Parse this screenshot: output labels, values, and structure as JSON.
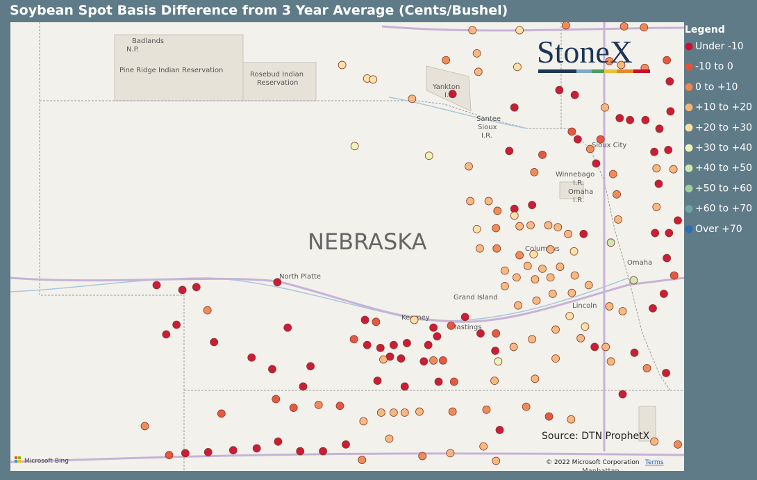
{
  "title": "Soybean Spot Basis Difference from 3 Year Average (Cents/Bushel)",
  "legend": {
    "title": "Legend",
    "items": [
      {
        "label": "Under -10",
        "color": "#c8102e"
      },
      {
        "label": "-10 to 0",
        "color": "#e4503a"
      },
      {
        "label": "0 to +10",
        "color": "#ee8650"
      },
      {
        "label": "+10 to +20",
        "color": "#f5b57a"
      },
      {
        "label": "+20 to +30",
        "color": "#fbe0a4"
      },
      {
        "label": "+30 to +40",
        "color": "#eef2b6"
      },
      {
        "label": "+40 to +50",
        "color": "#cfe6ae"
      },
      {
        "label": "+50 to +60",
        "color": "#9fcf9c"
      },
      {
        "label": "+60 to +70",
        "color": "#6fa6a4"
      },
      {
        "label": "Over +70",
        "color": "#2d6db5"
      }
    ]
  },
  "points": [
    [
      -102.41,
      41.09,
      0
    ],
    [
      -102.06,
      41.04,
      0
    ],
    [
      -101.87,
      41.07,
      0
    ],
    [
      -100.77,
      41.12,
      0
    ],
    [
      -101.72,
      40.83,
      2
    ],
    [
      -102.14,
      40.68,
      0
    ],
    [
      -102.28,
      40.58,
      0
    ],
    [
      -101.63,
      40.5,
      0
    ],
    [
      -101.12,
      40.34,
      0
    ],
    [
      -100.84,
      40.22,
      0
    ],
    [
      -100.63,
      40.65,
      0
    ],
    [
      -100.32,
      40.25,
      0
    ],
    [
      -100.42,
      40.04,
      0
    ],
    [
      -99.58,
      40.73,
      0
    ],
    [
      -99.43,
      40.71,
      1
    ],
    [
      -99.73,
      40.53,
      1
    ],
    [
      -99.55,
      40.47,
      0
    ],
    [
      -99.37,
      40.44,
      0
    ],
    [
      -99.19,
      40.47,
      0
    ],
    [
      -99.01,
      40.49,
      0
    ],
    [
      -99.24,
      40.35,
      0
    ],
    [
      -99.09,
      40.33,
      0
    ],
    [
      -99.33,
      40.32,
      3
    ],
    [
      -99.41,
      40.1,
      0
    ],
    [
      -98.78,
      40.3,
      0
    ],
    [
      -98.65,
      40.31,
      2
    ],
    [
      -98.52,
      40.31,
      1
    ],
    [
      -98.72,
      40.47,
      0
    ],
    [
      -98.6,
      40.56,
      0
    ],
    [
      -98.65,
      40.65,
      0
    ],
    [
      -98.41,
      40.67,
      1
    ],
    [
      -98.22,
      40.76,
      0
    ],
    [
      -98.91,
      40.73,
      4
    ],
    [
      -98.01,
      40.59,
      0
    ],
    [
      -97.8,
      40.59,
      1
    ],
    [
      -97.81,
      40.41,
      0
    ],
    [
      -97.56,
      40.45,
      3
    ],
    [
      -97.77,
      40.3,
      5
    ],
    [
      -97.31,
      40.53,
      3
    ],
    [
      -96.99,
      40.63,
      3
    ],
    [
      -96.8,
      40.77,
      4
    ],
    [
      -96.59,
      40.66,
      4
    ],
    [
      -96.65,
      40.54,
      3
    ],
    [
      -96.31,
      40.45,
      3
    ],
    [
      -96.24,
      40.3,
      3
    ],
    [
      -96.46,
      40.45,
      0
    ],
    [
      -96.99,
      40.33,
      3
    ],
    [
      -97.27,
      40.12,
      3
    ],
    [
      -97.82,
      40.1,
      3
    ],
    [
      -98.58,
      40.09,
      0
    ],
    [
      -98.37,
      40.09,
      1
    ],
    [
      -99.04,
      40.04,
      0
    ],
    [
      -100.79,
      39.91,
      1
    ],
    [
      -100.55,
      39.82,
      1
    ],
    [
      -100.21,
      39.85,
      2
    ],
    [
      -99.92,
      39.84,
      1
    ],
    [
      -101.53,
      39.76,
      1
    ],
    [
      -102.57,
      39.63,
      2
    ],
    [
      -99.6,
      39.68,
      3
    ],
    [
      -99.36,
      39.77,
      3
    ],
    [
      -99.19,
      39.77,
      3
    ],
    [
      -99.04,
      39.77,
      3
    ],
    [
      -98.84,
      39.78,
      3
    ],
    [
      -98.39,
      39.78,
      2
    ],
    [
      -97.93,
      39.8,
      2
    ],
    [
      -97.75,
      39.59,
      0
    ],
    [
      -97.39,
      39.83,
      2
    ],
    [
      -97.08,
      39.73,
      1
    ],
    [
      -96.78,
      39.7,
      3
    ],
    [
      -102.24,
      39.33,
      1
    ],
    [
      -102.02,
      39.35,
      0
    ],
    [
      -101.71,
      39.36,
      0
    ],
    [
      -101.37,
      39.38,
      0
    ],
    [
      -101.05,
      39.4,
      0
    ],
    [
      -100.76,
      39.47,
      0
    ],
    [
      -100.46,
      39.37,
      0
    ],
    [
      -100.15,
      39.37,
      0
    ],
    [
      -99.84,
      39.44,
      0
    ],
    [
      -99.62,
      39.28,
      2
    ],
    [
      -99.25,
      39.5,
      3
    ],
    [
      -98.8,
      39.32,
      2
    ],
    [
      -98.42,
      39.35,
      3
    ],
    [
      -97.97,
      39.42,
      3
    ],
    [
      -97.8,
      39.27,
      3
    ],
    [
      -98.17,
      42.32,
      3
    ],
    [
      -98.15,
      41.96,
      3
    ],
    [
      -97.9,
      41.96,
      3
    ],
    [
      -97.55,
      41.88,
      0
    ],
    [
      -97.31,
      41.92,
      0
    ],
    [
      -97.78,
      41.86,
      2
    ],
    [
      -97.55,
      41.81,
      4
    ],
    [
      -98.06,
      41.67,
      4
    ],
    [
      -97.8,
      41.68,
      2
    ],
    [
      -97.48,
      41.7,
      3
    ],
    [
      -97.33,
      41.71,
      3
    ],
    [
      -97.09,
      41.71,
      3
    ],
    [
      -96.96,
      41.69,
      3
    ],
    [
      -96.82,
      41.62,
      3
    ],
    [
      -96.61,
      41.62,
      0
    ],
    [
      -98.02,
      41.47,
      3
    ],
    [
      -97.79,
      41.47,
      2
    ],
    [
      -97.48,
      41.4,
      2
    ],
    [
      -97.29,
      41.41,
      4
    ],
    [
      -97.06,
      41.46,
      3
    ],
    [
      -96.74,
      41.44,
      4
    ],
    [
      -97.68,
      41.24,
      3
    ],
    [
      -97.37,
      41.29,
      3
    ],
    [
      -97.17,
      41.26,
      3
    ],
    [
      -96.93,
      41.28,
      3
    ],
    [
      -97.68,
      41.08,
      3
    ],
    [
      -97.52,
      41.17,
      3
    ],
    [
      -97.27,
      41.15,
      3
    ],
    [
      -97.06,
      41.17,
      3
    ],
    [
      -96.73,
      41.19,
      3
    ],
    [
      -97.25,
      40.93,
      3
    ],
    [
      -97.5,
      40.88,
      3
    ],
    [
      -97.03,
      41.0,
      3
    ],
    [
      -96.77,
      41.01,
      3
    ],
    [
      -96.54,
      41.09,
      3
    ],
    [
      -96.26,
      40.87,
      3
    ],
    [
      -96.08,
      40.82,
      3
    ],
    [
      -95.93,
      41.14,
      6
    ],
    [
      -96.24,
      41.53,
      6
    ],
    [
      -96.14,
      41.77,
      3
    ],
    [
      -96.16,
      42.03,
      2
    ],
    [
      -96.21,
      42.24,
      2
    ],
    [
      -97.28,
      42.26,
      2
    ],
    [
      -97.17,
      42.44,
      1
    ],
    [
      -97.62,
      42.48,
      0
    ],
    [
      -97.55,
      42.93,
      0
    ],
    [
      -96.44,
      42.35,
      0
    ],
    [
      -96.38,
      42.6,
      1
    ],
    [
      -96.52,
      42.5,
      2
    ],
    [
      -96.77,
      42.68,
      1
    ],
    [
      -96.69,
      42.6,
      0
    ],
    [
      -98.39,
      43.07,
      0
    ],
    [
      -98.94,
      43.02,
      3
    ],
    [
      -98.71,
      42.43,
      5
    ],
    [
      -99.72,
      42.53,
      5
    ],
    [
      -99.89,
      43.37,
      4
    ],
    [
      -99.55,
      43.23,
      4
    ],
    [
      -99.47,
      43.22,
      4
    ],
    [
      -98.12,
      43.73,
      3
    ],
    [
      -98.48,
      43.42,
      2
    ],
    [
      -98.06,
      43.49,
      3
    ],
    [
      -98.04,
      43.3,
      3
    ],
    [
      -97.48,
      43.73,
      4
    ],
    [
      -97.51,
      43.35,
      4
    ],
    [
      -96.94,
      43.11,
      0
    ],
    [
      -96.73,
      43.06,
      0
    ],
    [
      -96.32,
      42.93,
      3
    ],
    [
      -96.12,
      42.82,
      0
    ],
    [
      -95.98,
      42.8,
      0
    ],
    [
      -95.77,
      42.8,
      0
    ],
    [
      -95.58,
      42.71,
      0
    ],
    [
      -95.43,
      42.89,
      0
    ],
    [
      -95.65,
      42.47,
      0
    ],
    [
      -95.46,
      42.49,
      0
    ],
    [
      -95.59,
      42.14,
      0
    ],
    [
      -95.62,
      42.3,
      3
    ],
    [
      -95.39,
      42.29,
      3
    ],
    [
      -95.62,
      41.9,
      3
    ],
    [
      -95.33,
      41.76,
      0
    ],
    [
      -95.45,
      41.63,
      0
    ],
    [
      -95.64,
      41.63,
      0
    ],
    [
      -95.48,
      41.37,
      0
    ],
    [
      -95.38,
      41.19,
      1
    ],
    [
      -95.52,
      41.0,
      0
    ],
    [
      -95.67,
      40.85,
      0
    ],
    [
      -95.49,
      40.18,
      0
    ],
    [
      -96.08,
      39.96,
      0
    ],
    [
      -95.92,
      40.39,
      0
    ],
    [
      -95.75,
      40.23,
      2
    ],
    [
      -96.85,
      43.78,
      2
    ],
    [
      -96.06,
      43.77,
      2
    ],
    [
      -95.79,
      43.76,
      2
    ],
    [
      -96.26,
      43.41,
      2
    ],
    [
      -96.1,
      43.37,
      3
    ],
    [
      -95.78,
      43.34,
      2
    ],
    [
      -95.44,
      43.2,
      0
    ],
    [
      -95.48,
      43.42,
      1
    ],
    [
      -95.33,
      39.44,
      2
    ],
    [
      -95.65,
      39.47,
      3
    ]
  ],
  "map_labels": [
    "Badlands",
    "N.P.",
    "Pine Ridge Indian Reservation",
    "Rosebud Indian",
    "Reservation",
    "Yankton",
    "I.R.",
    "Santee",
    "Sioux",
    "I.R.",
    "Sioux City",
    "Winnebago",
    "I.R.",
    "Omaha",
    "I.R.",
    "NEBRASKA",
    "North Platte",
    "Columbus",
    "Omaha",
    "Grand Island",
    "Kearney",
    "Hastings",
    "Lincoln",
    "Manhattan"
  ],
  "logo": "StoneX",
  "source": "Source: DTN ProphetX",
  "attribution": {
    "provider": "Microsoft Bing",
    "copyright": "© 2022 Microsoft Corporation",
    "terms": "Terms"
  }
}
